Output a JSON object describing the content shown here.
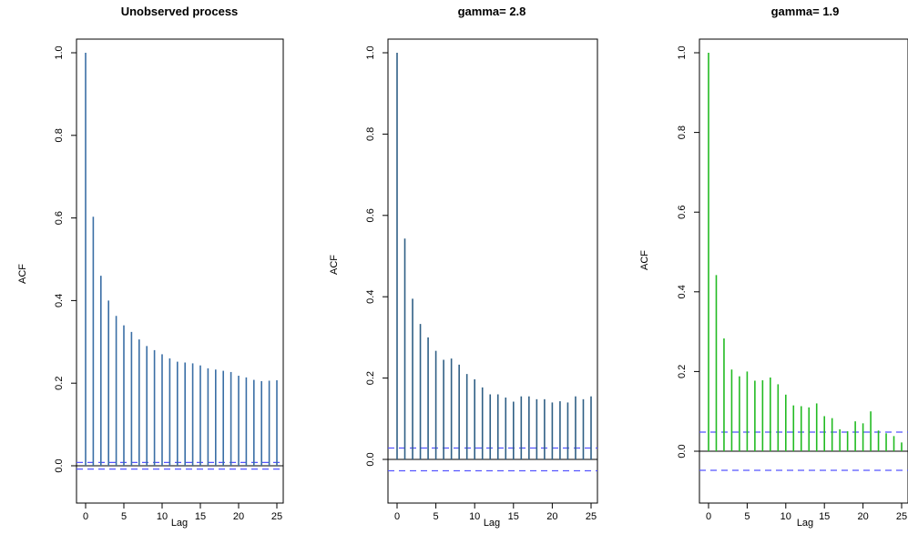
{
  "chart_data": [
    {
      "type": "bar",
      "title": "Unobserved process",
      "xlabel": "Lag",
      "ylabel": "ACF",
      "xlim": [
        0,
        25
      ],
      "ylim": [
        -0.02,
        1.0
      ],
      "xticks": [
        "0",
        "5",
        "10",
        "15",
        "20",
        "25"
      ],
      "yticks": [
        "0.0",
        "0.2",
        "0.4",
        "0.6",
        "0.8",
        "1.0"
      ],
      "bar_color": "#3a6ea5",
      "ci_color": "#5555ff",
      "ci": 0.008,
      "lags": [
        0,
        1,
        2,
        3,
        4,
        5,
        6,
        7,
        8,
        9,
        10,
        11,
        12,
        13,
        14,
        15,
        16,
        17,
        18,
        19,
        20,
        21,
        22,
        23,
        24,
        25
      ],
      "values": [
        1.0,
        0.603,
        0.46,
        0.4,
        0.363,
        0.34,
        0.324,
        0.306,
        0.29,
        0.28,
        0.27,
        0.26,
        0.252,
        0.25,
        0.248,
        0.243,
        0.236,
        0.233,
        0.23,
        0.227,
        0.218,
        0.214,
        0.208,
        0.205,
        0.206,
        0.207
      ]
    },
    {
      "type": "bar",
      "title": "gamma= 2.8",
      "xlabel": "Lag",
      "ylabel": "ACF",
      "xlim": [
        0,
        25
      ],
      "ylim": [
        -0.06,
        1.0
      ],
      "xticks": [
        "0",
        "5",
        "10",
        "15",
        "20",
        "25"
      ],
      "yticks": [
        "0.0",
        "0.2",
        "0.4",
        "0.6",
        "0.8",
        "1.0"
      ],
      "bar_color": "#2f5f85",
      "ci_color": "#5555ff",
      "ci": 0.028,
      "lags": [
        0,
        1,
        2,
        3,
        4,
        5,
        6,
        7,
        8,
        9,
        10,
        11,
        12,
        13,
        14,
        15,
        16,
        17,
        18,
        19,
        20,
        21,
        22,
        23,
        24,
        25
      ],
      "values": [
        1.0,
        0.543,
        0.395,
        0.333,
        0.3,
        0.267,
        0.245,
        0.248,
        0.233,
        0.21,
        0.197,
        0.177,
        0.16,
        0.16,
        0.152,
        0.142,
        0.155,
        0.155,
        0.148,
        0.148,
        0.14,
        0.143,
        0.14,
        0.155,
        0.148,
        0.155
      ]
    },
    {
      "type": "bar",
      "title": "gamma= 1.9",
      "xlabel": "Lag",
      "ylabel": "ACF",
      "xlim": [
        0,
        25
      ],
      "ylim": [
        -0.1,
        1.0
      ],
      "xticks": [
        "0",
        "5",
        "10",
        "15",
        "20",
        "25"
      ],
      "yticks": [
        "0.0",
        "0.2",
        "0.4",
        "0.6",
        "0.8",
        "1.0"
      ],
      "bar_color": "#22bb22",
      "ci_color": "#5555ff",
      "ci": 0.048,
      "lags": [
        0,
        1,
        2,
        3,
        4,
        5,
        6,
        7,
        8,
        9,
        10,
        11,
        12,
        13,
        14,
        15,
        16,
        17,
        18,
        19,
        20,
        21,
        22,
        23,
        24,
        25
      ],
      "values": [
        1.0,
        0.442,
        0.283,
        0.205,
        0.188,
        0.2,
        0.177,
        0.178,
        0.185,
        0.168,
        0.142,
        0.115,
        0.113,
        0.11,
        0.12,
        0.088,
        0.083,
        0.055,
        0.05,
        0.075,
        0.07,
        0.1,
        0.052,
        0.045,
        0.038,
        0.022
      ]
    }
  ]
}
